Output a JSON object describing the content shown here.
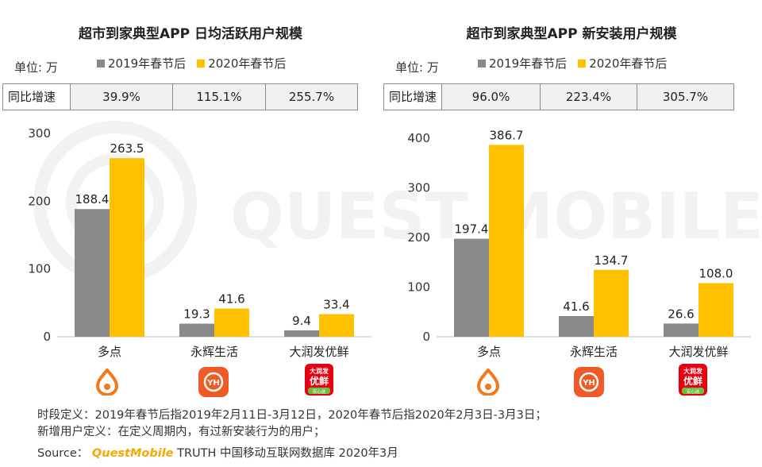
{
  "watermark": {
    "text": "QUEST MOBILE"
  },
  "colors": {
    "series2019": "#898989",
    "series2020": "#ffc000",
    "brand": "#f5a800"
  },
  "icons": {
    "duodian": "duodian-app-icon",
    "yonghui": "yonghui-app-icon",
    "dareng": "darunfa-app-icon"
  },
  "icon_text": {
    "yonghui": "YH",
    "darunfa_top": "大润发",
    "darunfa_mid": "优鲜",
    "darunfa_bot": "安心送"
  },
  "charts": {
    "left": {
      "unit_label": "单位: 万",
      "yoy_label": "同比增速",
      "yoy_values": [
        "39.9%",
        "115.1%",
        "255.7%"
      ]
    },
    "right": {
      "unit_label": "单位: 万",
      "yoy_label": "同比增速",
      "yoy_values": [
        "96.0%",
        "223.4%",
        "305.7%"
      ]
    }
  },
  "chart_data": [
    {
      "type": "bar",
      "title": "超市到家典型APP 日均活跃用户规模",
      "categories": [
        "多点",
        "永辉生活",
        "大润发优鲜"
      ],
      "series": [
        {
          "name": "2019年春节后",
          "values": [
            188.4,
            19.3,
            9.4
          ]
        },
        {
          "name": "2020年春节后",
          "values": [
            263.5,
            41.6,
            33.4
          ]
        }
      ],
      "ylim": [
        0,
        300
      ],
      "yticks": [
        0,
        100,
        200,
        300
      ],
      "legend": "top"
    },
    {
      "type": "bar",
      "title": "超市到家典型APP 新安装用户规模",
      "categories": [
        "多点",
        "永辉生活",
        "大润发优鲜"
      ],
      "series": [
        {
          "name": "2019年春节后",
          "values": [
            197.4,
            41.6,
            26.6
          ]
        },
        {
          "name": "2020年春节后",
          "values": [
            386.7,
            134.7,
            108.0
          ]
        }
      ],
      "ylim": [
        0,
        400
      ],
      "yticks": [
        0,
        100,
        200,
        300,
        400
      ],
      "legend": "top"
    }
  ],
  "footer": {
    "line1": "时段定义：2019年春节后指2019年2月11日-3月12日，2020年春节后指2020年2月3日-3月3日；",
    "line2": "新增用户定义：在定义周期内，有过新安装行为的用户；",
    "source_prefix": "Source：",
    "brand": "QuestMobile",
    "source_rest": " TRUTH 中国移动互联网数据库 2020年3月"
  }
}
